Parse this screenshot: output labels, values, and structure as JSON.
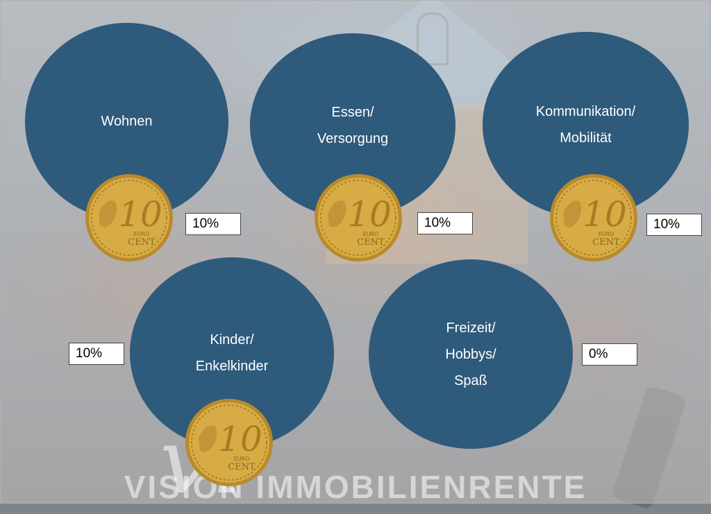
{
  "watermark": {
    "text": "VISION IMMOBILIENRENTE",
    "logo": "vi"
  },
  "categories": [
    {
      "id": "wohnen",
      "lines": [
        "Wohnen"
      ],
      "percent": "10%",
      "has_coin": true
    },
    {
      "id": "essen",
      "lines": [
        "Essen/",
        "Versorgung"
      ],
      "percent": "10%",
      "has_coin": true
    },
    {
      "id": "kommunikation",
      "lines": [
        "Kommunikation/",
        "Mobilität"
      ],
      "percent": "10%",
      "has_coin": true
    },
    {
      "id": "kinder",
      "lines": [
        "Kinder/",
        "Enkelkinder"
      ],
      "percent": "10%",
      "has_coin": true
    },
    {
      "id": "freizeit",
      "lines": [
        "Freizeit/",
        "Hobbys/",
        "Spaß"
      ],
      "percent": "0%",
      "has_coin": false
    }
  ],
  "coin": {
    "value": "10",
    "label_top": "EURO",
    "label_bottom": "CENT",
    "icon": "euro-10-cent-coin-icon"
  },
  "colors": {
    "circle": "#2e5a7c",
    "circle_text": "#ffffff",
    "coin_gold": "#d7ac45"
  }
}
